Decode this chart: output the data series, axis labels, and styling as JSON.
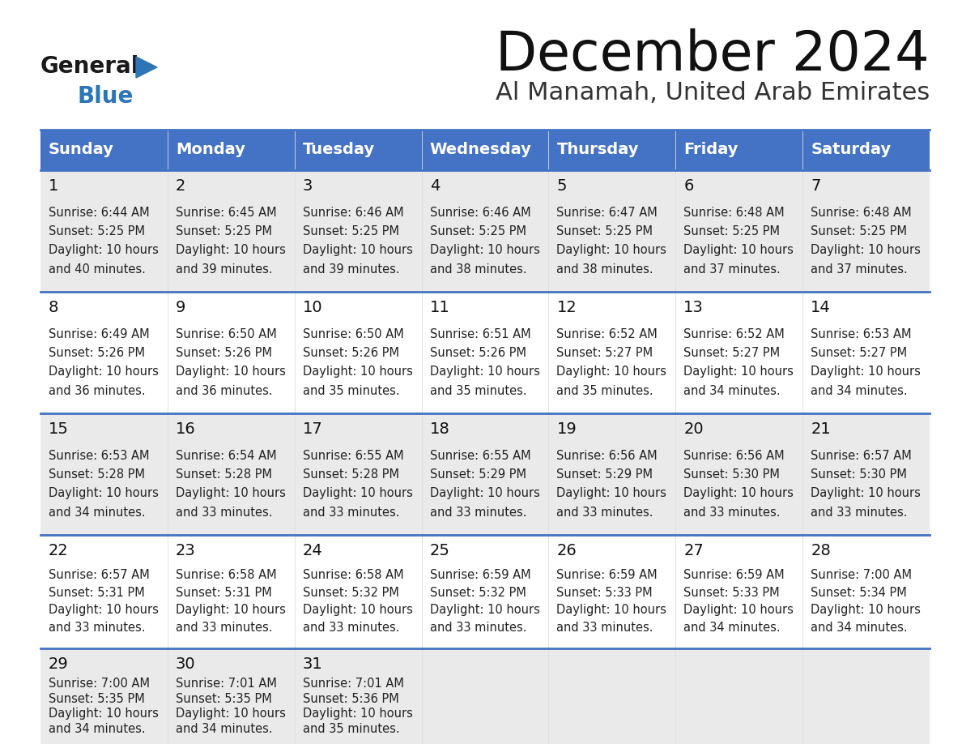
{
  "title": "December 2024",
  "subtitle": "Al Manamah, United Arab Emirates",
  "header_bg_color": "#4472C4",
  "header_text_color": "#FFFFFF",
  "days_of_week": [
    "Sunday",
    "Monday",
    "Tuesday",
    "Wednesday",
    "Thursday",
    "Friday",
    "Saturday"
  ],
  "row_bg_even": "#EAEAEA",
  "row_bg_odd": "#FFFFFF",
  "border_color": "#4472C4",
  "logo_general_color": "#1a1a1a",
  "logo_blue_color": "#2E75B6",
  "calendar_data": [
    [
      {
        "day": 1,
        "sunrise": "6:44 AM",
        "sunset": "5:25 PM",
        "daylight_minutes": "40"
      },
      {
        "day": 2,
        "sunrise": "6:45 AM",
        "sunset": "5:25 PM",
        "daylight_minutes": "39"
      },
      {
        "day": 3,
        "sunrise": "6:46 AM",
        "sunset": "5:25 PM",
        "daylight_minutes": "39"
      },
      {
        "day": 4,
        "sunrise": "6:46 AM",
        "sunset": "5:25 PM",
        "daylight_minutes": "38"
      },
      {
        "day": 5,
        "sunrise": "6:47 AM",
        "sunset": "5:25 PM",
        "daylight_minutes": "38"
      },
      {
        "day": 6,
        "sunrise": "6:48 AM",
        "sunset": "5:25 PM",
        "daylight_minutes": "37"
      },
      {
        "day": 7,
        "sunrise": "6:48 AM",
        "sunset": "5:25 PM",
        "daylight_minutes": "37"
      }
    ],
    [
      {
        "day": 8,
        "sunrise": "6:49 AM",
        "sunset": "5:26 PM",
        "daylight_minutes": "36"
      },
      {
        "day": 9,
        "sunrise": "6:50 AM",
        "sunset": "5:26 PM",
        "daylight_minutes": "36"
      },
      {
        "day": 10,
        "sunrise": "6:50 AM",
        "sunset": "5:26 PM",
        "daylight_minutes": "35"
      },
      {
        "day": 11,
        "sunrise": "6:51 AM",
        "sunset": "5:26 PM",
        "daylight_minutes": "35"
      },
      {
        "day": 12,
        "sunrise": "6:52 AM",
        "sunset": "5:27 PM",
        "daylight_minutes": "35"
      },
      {
        "day": 13,
        "sunrise": "6:52 AM",
        "sunset": "5:27 PM",
        "daylight_minutes": "34"
      },
      {
        "day": 14,
        "sunrise": "6:53 AM",
        "sunset": "5:27 PM",
        "daylight_minutes": "34"
      }
    ],
    [
      {
        "day": 15,
        "sunrise": "6:53 AM",
        "sunset": "5:28 PM",
        "daylight_minutes": "34"
      },
      {
        "day": 16,
        "sunrise": "6:54 AM",
        "sunset": "5:28 PM",
        "daylight_minutes": "33"
      },
      {
        "day": 17,
        "sunrise": "6:55 AM",
        "sunset": "5:28 PM",
        "daylight_minutes": "33"
      },
      {
        "day": 18,
        "sunrise": "6:55 AM",
        "sunset": "5:29 PM",
        "daylight_minutes": "33"
      },
      {
        "day": 19,
        "sunrise": "6:56 AM",
        "sunset": "5:29 PM",
        "daylight_minutes": "33"
      },
      {
        "day": 20,
        "sunrise": "6:56 AM",
        "sunset": "5:30 PM",
        "daylight_minutes": "33"
      },
      {
        "day": 21,
        "sunrise": "6:57 AM",
        "sunset": "5:30 PM",
        "daylight_minutes": "33"
      }
    ],
    [
      {
        "day": 22,
        "sunrise": "6:57 AM",
        "sunset": "5:31 PM",
        "daylight_minutes": "33"
      },
      {
        "day": 23,
        "sunrise": "6:58 AM",
        "sunset": "5:31 PM",
        "daylight_minutes": "33"
      },
      {
        "day": 24,
        "sunrise": "6:58 AM",
        "sunset": "5:32 PM",
        "daylight_minutes": "33"
      },
      {
        "day": 25,
        "sunrise": "6:59 AM",
        "sunset": "5:32 PM",
        "daylight_minutes": "33"
      },
      {
        "day": 26,
        "sunrise": "6:59 AM",
        "sunset": "5:33 PM",
        "daylight_minutes": "33"
      },
      {
        "day": 27,
        "sunrise": "6:59 AM",
        "sunset": "5:33 PM",
        "daylight_minutes": "34"
      },
      {
        "day": 28,
        "sunrise": "7:00 AM",
        "sunset": "5:34 PM",
        "daylight_minutes": "34"
      }
    ],
    [
      {
        "day": 29,
        "sunrise": "7:00 AM",
        "sunset": "5:35 PM",
        "daylight_minutes": "34"
      },
      {
        "day": 30,
        "sunrise": "7:01 AM",
        "sunset": "5:35 PM",
        "daylight_minutes": "34"
      },
      {
        "day": 31,
        "sunrise": "7:01 AM",
        "sunset": "5:36 PM",
        "daylight_minutes": "35"
      },
      null,
      null,
      null,
      null
    ]
  ]
}
